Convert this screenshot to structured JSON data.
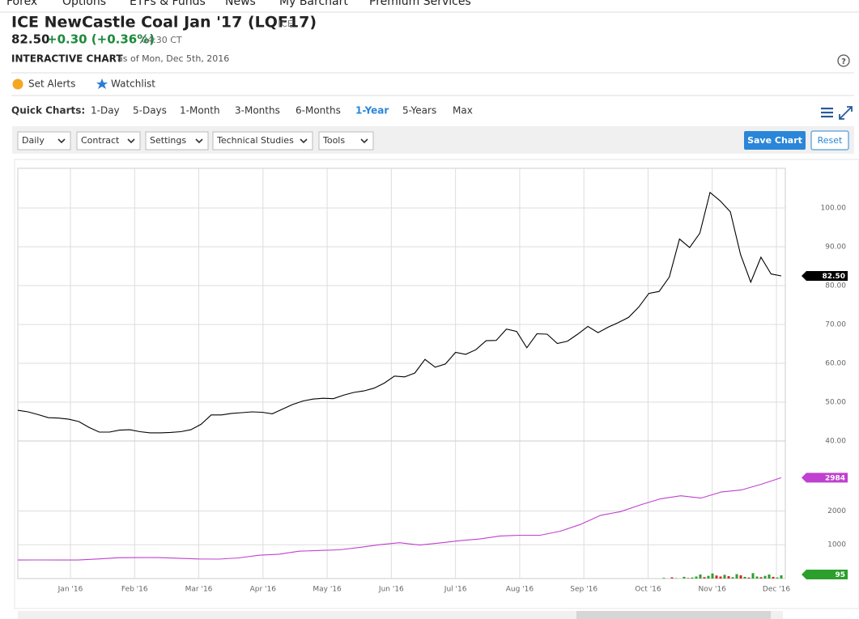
{
  "nav": [
    "Forex",
    "Options",
    "ETFs & Funds",
    "News",
    "My Barchart",
    "Premium Services"
  ],
  "header": {
    "title": "ICE NewCastle Coal Jan '17 (LQF17)",
    "exchange": "ICE",
    "price": "82.50",
    "change": "+0.30 (+0.36%)",
    "time": "04:30 CT",
    "chart_label": "INTERACTIVE CHART",
    "as_of": "as of Mon, Dec 5th, 2016"
  },
  "help": "?",
  "actions": [
    "Set Alerts",
    "Watchlist"
  ],
  "quick_charts": {
    "label": "Quick Charts:",
    "options": [
      "1-Day",
      "5-Days",
      "1-Month",
      "3-Months",
      "6-Months",
      "1-Year",
      "5-Years",
      "Max"
    ],
    "selected_index": 5
  },
  "toolbar": {
    "dropdowns": [
      "Daily",
      "Contract",
      "Settings",
      "Technical Studies",
      "Tools"
    ],
    "save": "Save Chart",
    "reset": "Reset"
  },
  "chart_data": [
    {
      "type": "line",
      "grid": true,
      "series": [
        {
          "color": "#000000",
          "last_label": "82.50",
          "values": [
            47.9,
            47.5,
            46.8,
            46.0,
            45.9,
            45.6,
            45.0,
            43.5,
            42.3,
            42.3,
            42.8,
            42.9,
            42.4,
            42.1,
            42.1,
            42.2,
            42.4,
            42.9,
            44.3,
            46.7,
            46.7,
            47.1,
            47.3,
            47.5,
            47.4,
            47.0,
            48.2,
            49.4,
            50.3,
            50.8,
            51.0,
            50.9,
            51.8,
            52.5,
            52.9,
            53.6,
            54.9,
            56.7,
            56.5,
            57.5,
            61.0,
            59.0,
            59.8,
            62.8,
            62.3,
            63.5,
            65.8,
            65.9,
            68.8,
            68.2,
            64.0,
            67.6,
            67.5,
            65.1,
            65.7,
            67.5,
            69.5,
            67.9,
            69.3,
            70.5,
            71.8,
            74.5,
            78.0,
            78.5,
            82.2,
            92.0,
            89.8,
            93.5,
            104.0,
            101.8,
            99.0,
            88.0,
            80.9,
            87.3,
            83.0,
            82.5
          ]
        }
      ],
      "ylim": [
        40,
        110.2
      ],
      "yticks": [
        {
          "value": 40,
          "label": "40.00"
        },
        {
          "value": 50,
          "label": "50.00"
        },
        {
          "value": 60,
          "label": "60.00"
        },
        {
          "value": 70,
          "label": "70.00"
        },
        {
          "value": 80,
          "label": "80.00"
        },
        {
          "value": 90,
          "label": "90.00"
        },
        {
          "value": 100,
          "label": "100.00"
        }
      ]
    },
    {
      "type": "line",
      "grid": true,
      "x_labels": [
        "Jan '16",
        "Feb '16",
        "Mar '16",
        "Apr '16",
        "May '16",
        "Jun '16",
        "Jul '16",
        "Aug '16",
        "Sep '16",
        "Oct '16",
        "Nov '16",
        "Dec '16"
      ],
      "series": [
        {
          "color": "#c040d0",
          "values": [
            548,
            550,
            548,
            548,
            580,
            615,
            620,
            620,
            600,
            580,
            575,
            610,
            690,
            720,
            810,
            830,
            850,
            920,
            1000,
            1060,
            990,
            1050,
            1120,
            1170,
            1260,
            1280,
            1280,
            1400,
            1600,
            1870,
            1980,
            2180,
            2360,
            2450,
            2380,
            2560,
            2620,
            2790,
            2984
          ]
        },
        {
          "type": "bar",
          "color": "#2ca02c",
          "values": [
            20,
            0,
            35,
            10,
            0,
            50,
            15,
            30,
            60,
            120,
            40,
            80,
            150,
            90,
            60,
            110,
            70,
            40,
            130,
            95,
            50,
            30,
            160,
            60,
            40,
            80,
            120,
            50,
            30,
            95
          ],
          "colors": [
            "#2ca02c",
            "#2ca02c",
            "#d62728",
            "#2ca02c",
            "#2ca02c",
            "#2ca02c",
            "#d62728",
            "#2ca02c",
            "#2ca02c",
            "#2ca02c",
            "#d62728",
            "#2ca02c",
            "#2ca02c",
            "#d62728",
            "#d62728",
            "#2ca02c",
            "#d62728",
            "#2ca02c",
            "#2ca02c",
            "#d62728",
            "#2ca02c",
            "#d62728",
            "#2ca02c",
            "#2ca02c",
            "#d62728",
            "#2ca02c",
            "#2ca02c",
            "#d62728",
            "#2ca02c",
            "#2ca02c"
          ]
        }
      ],
      "ylim": [
        0,
        4070
      ],
      "yticks": [
        1000,
        2000
      ]
    }
  ]
}
